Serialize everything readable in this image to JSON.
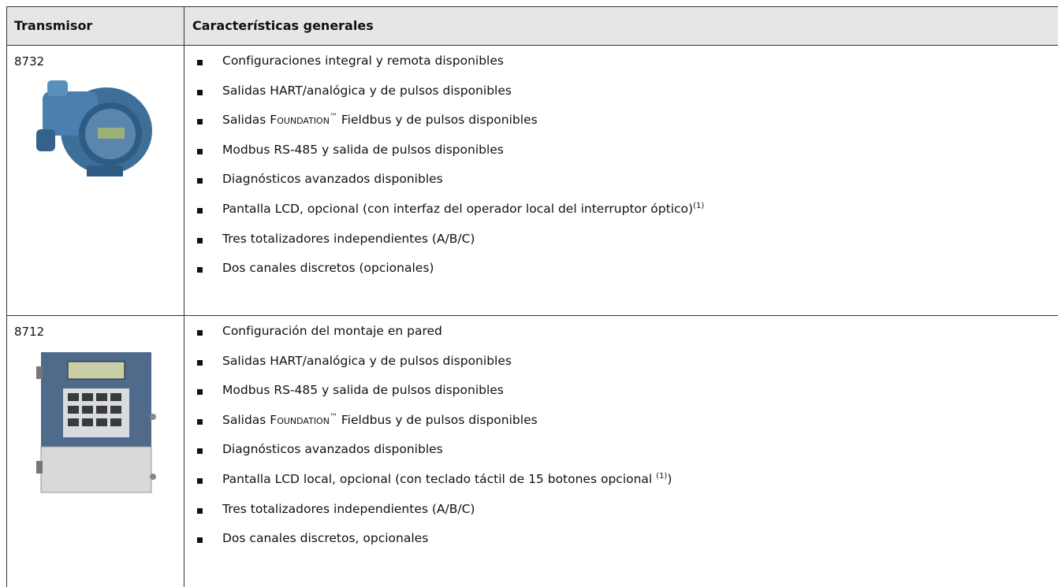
{
  "header": {
    "col1": "Transmisor",
    "col2": "Características generales"
  },
  "rows": [
    {
      "model": "8732",
      "items": [
        "Configuraciones integral y remota disponibles",
        "Salidas HART/analógica y de pulsos disponibles",
        [
          "Salidas ",
          {
            "text": "Foundation",
            "style": "small-caps"
          },
          {
            "text": "™",
            "style": "sup"
          },
          " Fieldbus y de pulsos disponibles"
        ],
        "Modbus RS-485 y salida de pulsos disponibles",
        "Diagnósticos avanzados disponibles",
        [
          "Pantalla LCD, opcional (con interfaz del operador local del interruptor óptico)",
          {
            "text": "(1)",
            "style": "sup"
          }
        ],
        "Tres totalizadores independientes (A/B/C)",
        "Dos canales discretos (opcionales)"
      ]
    },
    {
      "model": "8712",
      "items": [
        "Configuración del montaje en pared",
        "Salidas HART/analógica y de pulsos disponibles",
        "Modbus RS-485 y salida de pulsos disponibles",
        [
          "Salidas ",
          {
            "text": "Foundation",
            "style": "small-caps"
          },
          {
            "text": "™",
            "style": "sup"
          },
          " Fieldbus y de pulsos disponibles"
        ],
        "Diagnósticos avanzados disponibles",
        [
          "Pantalla LCD local, opcional (con teclado táctil de 15 botones opcional ",
          {
            "text": "(1)",
            "style": "sup"
          },
          ")"
        ],
        "Tres totalizadores independientes (A/B/C)",
        "Dos canales discretos, opcionales"
      ]
    }
  ]
}
